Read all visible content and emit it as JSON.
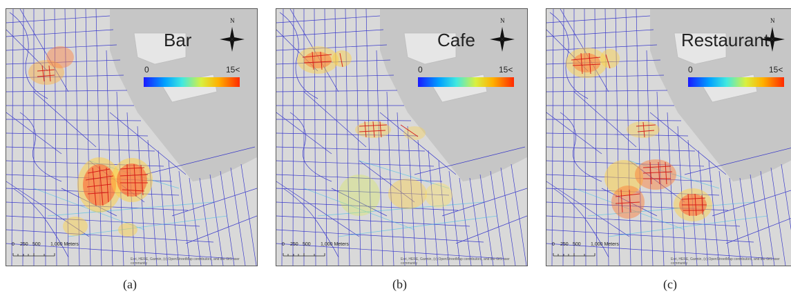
{
  "figure": {
    "panels": [
      {
        "title": "Bar",
        "caption": "(a)",
        "legend": {
          "min_label": "0",
          "max_label": "15<"
        },
        "scale": {
          "labels": [
            "0",
            "250",
            "500",
            "1,000 Meters"
          ]
        },
        "attribution": "Esri, HERE, Garmin, (c) OpenStreetMap contributors, and the GIS user community",
        "north_label": "N"
      },
      {
        "title": "Cafe",
        "caption": "(b)",
        "legend": {
          "min_label": "0",
          "max_label": "15<"
        },
        "scale": {
          "labels": [
            "0",
            "250",
            "500",
            "1,000 Meters"
          ]
        },
        "attribution": "Esri, HERE, Garmin, (c) OpenStreetMap contributors, and the GIS user community",
        "north_label": "N"
      },
      {
        "title": "Restaurant",
        "caption": "(c)",
        "legend": {
          "min_label": "0",
          "max_label": "15<"
        },
        "scale": {
          "labels": [
            "0",
            "250",
            "500",
            "1,000 Meters"
          ]
        },
        "attribution": "Esri, HERE, Garmin, (c) OpenStreetMap contributors, and the GIS user community",
        "north_label": "N"
      }
    ],
    "colors": {
      "streets": "#1f1fc8",
      "land": "#d9d9d9",
      "water": "#c8c8c8",
      "hot": "#e82020",
      "warm": "#ffd040",
      "cool": "#40d8e8"
    }
  }
}
